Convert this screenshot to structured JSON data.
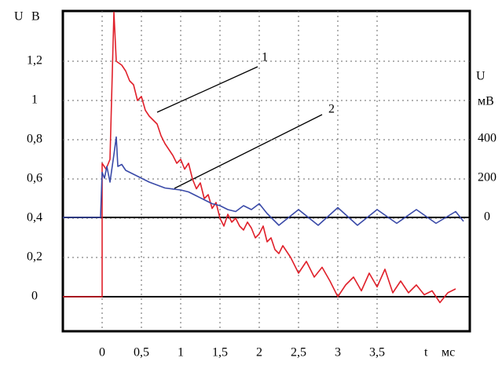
{
  "chart_data": {
    "type": "line",
    "y_label": "U",
    "y_unit": "В",
    "y2_label": "U",
    "y2_unit": "мВ",
    "x_label": "t",
    "x_unit": "мс",
    "annotations": [
      {
        "text": "1"
      },
      {
        "text": "2"
      }
    ],
    "grid": true,
    "xlim": [
      -0.5,
      4.68
    ],
    "xticks": [
      0,
      {
        "value": 0.5,
        "label": "0,5"
      },
      1,
      {
        "value": 1.5,
        "label": "1,5"
      },
      2,
      {
        "value": 2.5,
        "label": "2,5"
      },
      3,
      {
        "value": 3.5,
        "label": "3,5"
      }
    ],
    "ylim": [
      -0.176,
      1.456
    ],
    "yticks": [
      0,
      {
        "value": 0.2,
        "label": "0,2"
      },
      {
        "value": 0.4,
        "label": "0,4"
      },
      {
        "value": 0.6,
        "label": "0,6"
      },
      {
        "value": 0.8,
        "label": "0,8"
      },
      1,
      {
        "value": 1.2,
        "label": "1,2"
      }
    ],
    "y2lim": [
      -580,
      1052
    ],
    "y2ticks": [
      0,
      200,
      400
    ],
    "series": [
      {
        "color": "#e0202a",
        "x": [
          -0.5,
          0,
          0,
          0.05,
          0.1,
          0.15,
          0.18,
          0.25,
          0.3,
          0.35,
          0.4,
          0.45,
          0.5,
          0.55,
          0.6,
          0.65,
          0.7,
          0.75,
          0.8,
          0.85,
          0.9,
          0.95,
          1.0,
          1.05,
          1.1,
          1.15,
          1.2,
          1.25,
          1.3,
          1.35,
          1.4,
          1.45,
          1.5,
          1.55,
          1.6,
          1.65,
          1.7,
          1.75,
          1.8,
          1.85,
          1.9,
          1.95,
          2.0,
          2.05,
          2.1,
          2.15,
          2.2,
          2.25,
          2.3,
          2.4,
          2.5,
          2.6,
          2.7,
          2.8,
          2.9,
          3.0,
          3.1,
          3.2,
          3.3,
          3.4,
          3.5,
          3.6,
          3.7,
          3.8,
          3.9,
          4.0,
          4.1,
          4.2,
          4.3,
          4.4,
          4.5
        ],
        "values": [
          0,
          0,
          0.68,
          0.65,
          0.7,
          1.45,
          1.2,
          1.18,
          1.15,
          1.1,
          1.08,
          1.0,
          1.02,
          0.95,
          0.92,
          0.9,
          0.88,
          0.82,
          0.78,
          0.75,
          0.72,
          0.68,
          0.7,
          0.65,
          0.68,
          0.6,
          0.55,
          0.58,
          0.5,
          0.52,
          0.45,
          0.48,
          0.4,
          0.36,
          0.42,
          0.38,
          0.4,
          0.36,
          0.34,
          0.38,
          0.35,
          0.3,
          0.32,
          0.36,
          0.28,
          0.3,
          0.24,
          0.22,
          0.26,
          0.2,
          0.12,
          0.18,
          0.1,
          0.15,
          0.08,
          0,
          0.06,
          0.1,
          0.03,
          0.12,
          0.05,
          0.14,
          0.02,
          0.08,
          0.02,
          0.06,
          0.01,
          0.03,
          -0.03,
          0.02,
          0.04
        ]
      },
      {
        "color": "#3a4aa8",
        "axis": "y2",
        "x": [
          -0.5,
          -0.02,
          0,
          0.03,
          0.06,
          0.1,
          0.15,
          0.18,
          0.2,
          0.25,
          0.3,
          0.4,
          0.5,
          0.6,
          0.7,
          0.8,
          0.9,
          1.0,
          1.1,
          1.2,
          1.3,
          1.4,
          1.5,
          1.6,
          1.7,
          1.8,
          1.9,
          2.0,
          2.1,
          2.25,
          2.5,
          2.75,
          3.0,
          3.25,
          3.5,
          3.75,
          4.0,
          4.25,
          4.5,
          4.6
        ],
        "values": [
          0,
          0,
          230,
          200,
          260,
          180,
          320,
          410,
          260,
          270,
          240,
          220,
          200,
          180,
          165,
          150,
          145,
          140,
          130,
          110,
          90,
          70,
          60,
          40,
          30,
          60,
          40,
          70,
          20,
          -40,
          40,
          -40,
          50,
          -40,
          40,
          -30,
          40,
          -30,
          30,
          -20
        ]
      }
    ]
  }
}
